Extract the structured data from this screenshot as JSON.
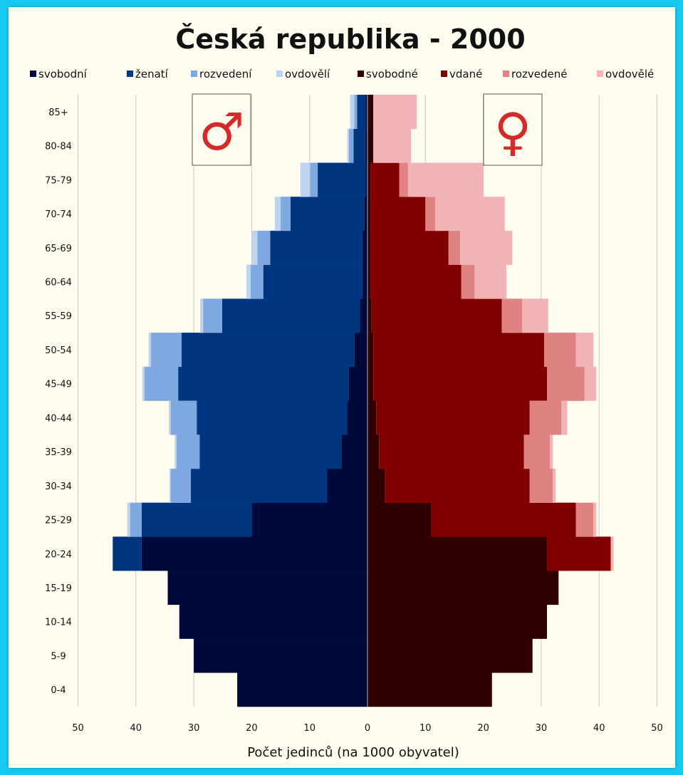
{
  "chart_data": {
    "type": "bar",
    "title": "Česká republika - 2000",
    "xlabel": "Počet jedinců (na 1000 obyvatel)",
    "xlim": [
      -50,
      50
    ],
    "x_ticks": [
      "50",
      "40",
      "30",
      "20",
      "10",
      "0",
      "10",
      "20",
      "30",
      "40",
      "50"
    ],
    "grid": true,
    "legend_position": "top",
    "male_symbol": "♂",
    "female_symbol": "♀",
    "categories": [
      "0-4",
      "5-9",
      "10-14",
      "15-19",
      "20-24",
      "25-29",
      "30-34",
      "35-39",
      "40-44",
      "45-49",
      "50-54",
      "55-59",
      "60-64",
      "65-69",
      "70-74",
      "75-79",
      "80-84",
      "85+"
    ],
    "series": [
      {
        "name": "svobodní",
        "sex": "male",
        "color": "#000a3a",
        "values": [
          22.5,
          30,
          32.5,
          34.5,
          39,
          20,
          7,
          4.5,
          3.5,
          3.2,
          2.3,
          1.3,
          0.8,
          0.8,
          0.5,
          0.3,
          0.4,
          0.3
        ]
      },
      {
        "name": "ženatí",
        "sex": "male",
        "color": "#003580",
        "values": [
          0,
          0,
          0,
          0,
          5,
          19,
          23.5,
          24.5,
          26,
          29.5,
          29.8,
          23.8,
          17.2,
          16,
          12.8,
          8.3,
          2,
          1.5
        ]
      },
      {
        "name": "rozvedení",
        "sex": "male",
        "color": "#80a8e0",
        "values": [
          0,
          0,
          0,
          0,
          0,
          2,
          3.5,
          4,
          4.5,
          5.8,
          5.3,
          3.3,
          2.2,
          2.2,
          1.7,
          1.3,
          0.8,
          0.5
        ]
      },
      {
        "name": "ovdovělí",
        "sex": "male",
        "color": "#bcd3f2",
        "values": [
          0,
          0,
          0,
          0,
          0,
          0.5,
          0.2,
          0.3,
          0.3,
          0.4,
          0.4,
          0.5,
          0.7,
          1,
          1,
          1.7,
          0.3,
          0.7
        ]
      },
      {
        "name": "svobodné",
        "sex": "female",
        "color": "#300000",
        "values": [
          21.5,
          28.5,
          31,
          33,
          31,
          11,
          3,
          2,
          1.5,
          1,
          1,
          0.7,
          0.5,
          0.5,
          0.5,
          0.5,
          1,
          1
        ]
      },
      {
        "name": "vdané",
        "sex": "female",
        "color": "#800000",
        "values": [
          0,
          0,
          0,
          0,
          11,
          25,
          25,
          25,
          26.5,
          30,
          29.5,
          22.5,
          15.7,
          13.5,
          9.5,
          5,
          0,
          0
        ]
      },
      {
        "name": "rozvedené",
        "sex": "female",
        "color": "#de8282",
        "values": [
          0,
          0,
          0,
          0,
          0,
          3,
          4,
          4.5,
          5.5,
          6.5,
          5.5,
          3.5,
          2.3,
          2,
          1.7,
          1.5,
          0,
          0
        ]
      },
      {
        "name": "ovdovělé",
        "sex": "female",
        "color": "#f1b3b5",
        "values": [
          0,
          0,
          0,
          0,
          0.5,
          0.5,
          0.5,
          0.5,
          1,
          2,
          3,
          4.5,
          5.5,
          9,
          12,
          13,
          6.5,
          7.5
        ]
      }
    ]
  }
}
